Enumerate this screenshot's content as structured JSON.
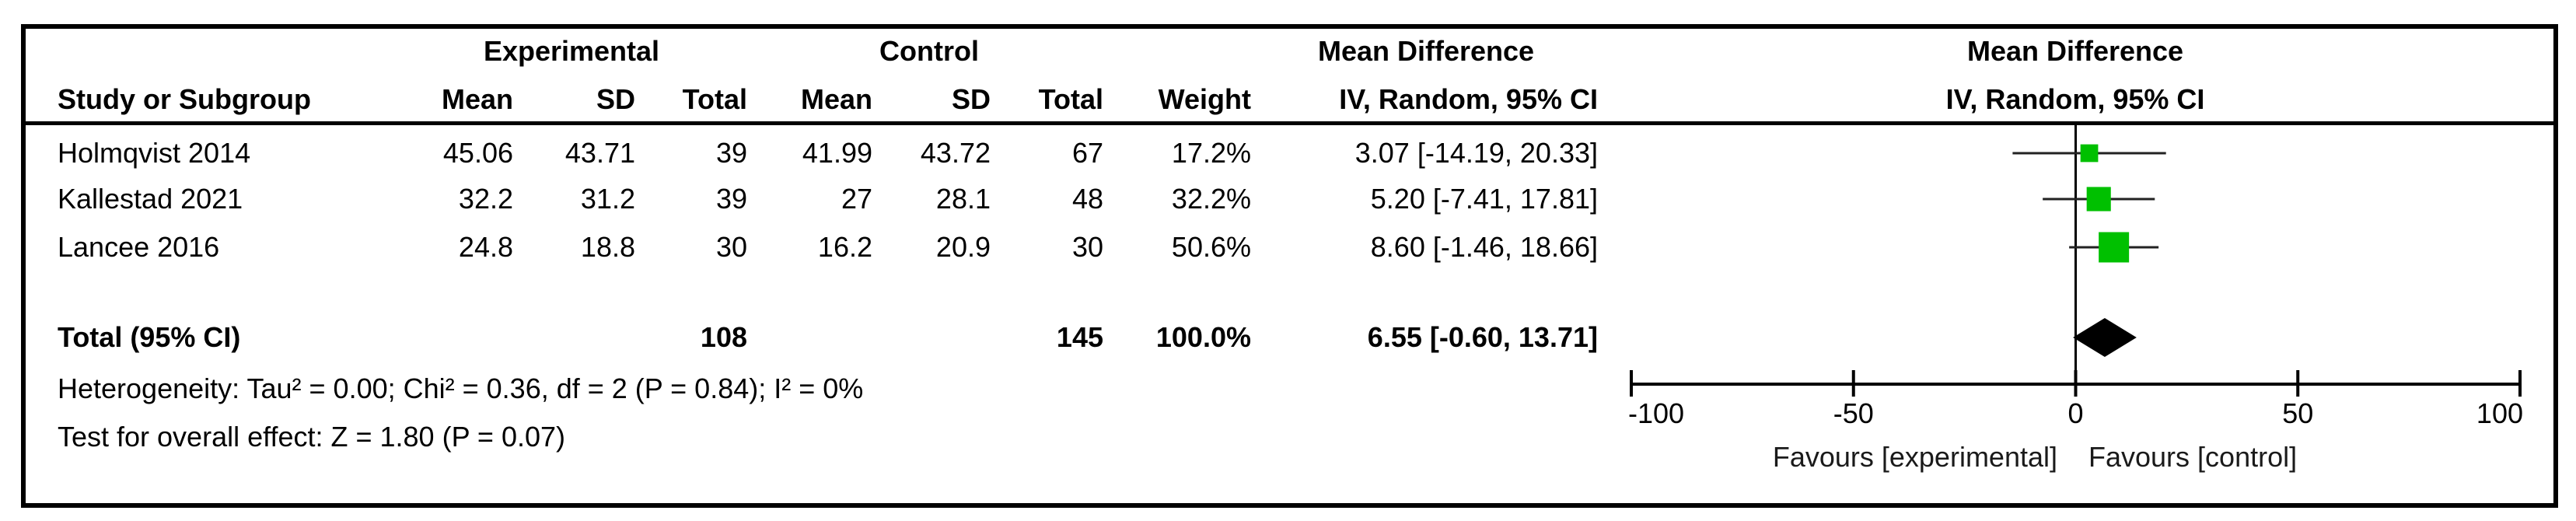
{
  "headers": {
    "experimental": "Experimental",
    "control": "Control",
    "mean_difference": "Mean Difference",
    "study": "Study or Subgroup",
    "exp_mean": "Mean",
    "exp_sd": "SD",
    "exp_total": "Total",
    "ctl_mean": "Mean",
    "ctl_sd": "SD",
    "ctl_total": "Total",
    "weight": "Weight",
    "md_method": "IV, Random, 95% CI",
    "plot_title": "Mean Difference",
    "plot_method": "IV, Random, 95% CI"
  },
  "studies": [
    {
      "name": "Holmqvist 2014",
      "exp_mean": "45.06",
      "exp_sd": "43.71",
      "exp_total": "39",
      "ctl_mean": "41.99",
      "ctl_sd": "43.72",
      "ctl_total": "67",
      "weight": "17.2%",
      "ci_text": "3.07 [-14.19, 20.33]",
      "md": 3.07,
      "lo": -14.19,
      "hi": 20.33,
      "w": 17.2
    },
    {
      "name": "Kallestad 2021",
      "exp_mean": "32.2",
      "exp_sd": "31.2",
      "exp_total": "39",
      "ctl_mean": "27",
      "ctl_sd": "28.1",
      "ctl_total": "48",
      "weight": "32.2%",
      "ci_text": "5.20 [-7.41, 17.81]",
      "md": 5.2,
      "lo": -7.41,
      "hi": 17.81,
      "w": 32.2
    },
    {
      "name": "Lancee 2016",
      "exp_mean": "24.8",
      "exp_sd": "18.8",
      "exp_total": "30",
      "ctl_mean": "16.2",
      "ctl_sd": "20.9",
      "ctl_total": "30",
      "weight": "50.6%",
      "ci_text": "8.60 [-1.46, 18.66]",
      "md": 8.6,
      "lo": -1.46,
      "hi": 18.66,
      "w": 50.6
    }
  ],
  "total": {
    "label": "Total (95% CI)",
    "exp_total": "108",
    "ctl_total": "145",
    "weight": "100.0%",
    "ci_text": "6.55 [-0.60, 13.71]",
    "md": 6.55,
    "lo": -0.6,
    "hi": 13.71
  },
  "heterogeneity": "Heterogeneity: Tau² = 0.00; Chi² = 0.36, df = 2 (P = 0.84); I² = 0%",
  "overall_effect": "Test for overall effect: Z = 1.80 (P = 0.07)",
  "chart_data": {
    "type": "forest",
    "xlim": [
      -100,
      100
    ],
    "ticks": [
      -100,
      -50,
      0,
      50,
      100
    ],
    "tick_labels": [
      "-100",
      "-50",
      "0",
      "50",
      "100"
    ],
    "favours_left": "Favours [experimental]",
    "favours_right": "Favours [control]",
    "colors": {
      "study_marker": "#00C000",
      "summary_diamond": "#000000",
      "lines": "#000000"
    }
  }
}
